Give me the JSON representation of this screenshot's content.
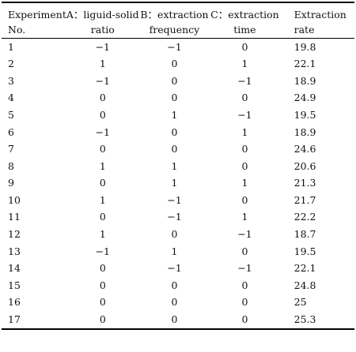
{
  "header": {
    "row1": [
      "Experiment",
      "A：liguid-solid",
      "B：extraction",
      "C：extraction",
      "Extraction"
    ],
    "row2": [
      "No.",
      "ratio",
      "frequency",
      "time",
      "rate"
    ]
  },
  "rows": [
    [
      "1",
      "−1",
      "−1",
      "0",
      "19.8"
    ],
    [
      "2",
      "1",
      "0",
      "1",
      "22.1"
    ],
    [
      "3",
      "−1",
      "0",
      "−1",
      "18.9"
    ],
    [
      "4",
      "0",
      "0",
      "0",
      "24.9"
    ],
    [
      "5",
      "0",
      "1",
      "−1",
      "19.5"
    ],
    [
      "6",
      "−1",
      "0",
      "1",
      "18.9"
    ],
    [
      "7",
      "0",
      "0",
      "0",
      "24.6"
    ],
    [
      "8",
      "1",
      "1",
      "0",
      "20.6"
    ],
    [
      "9",
      "0",
      "1",
      "1",
      "21.3"
    ],
    [
      "10",
      "1",
      "−1",
      "0",
      "21.7"
    ],
    [
      "11",
      "0",
      "−1",
      "1",
      "22.2"
    ],
    [
      "12",
      "1",
      "0",
      "−1",
      "18.7"
    ],
    [
      "13",
      "−1",
      "1",
      "0",
      "19.5"
    ],
    [
      "14",
      "0",
      "−1",
      "−1",
      "22.1"
    ],
    [
      "15",
      "0",
      "0",
      "0",
      "24.8"
    ],
    [
      "16",
      "0",
      "0",
      "0",
      "25"
    ],
    [
      "17",
      "0",
      "0",
      "0",
      "25.3"
    ]
  ]
}
